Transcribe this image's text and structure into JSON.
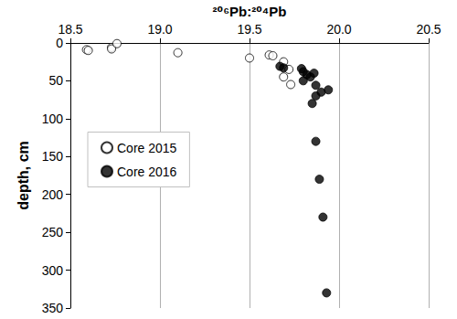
{
  "chart_data": {
    "type": "scatter",
    "x_label": "²⁰⁶Pb:²⁰⁴Pb",
    "y_label": "depth, cm",
    "xlim": [
      18.5,
      20.5
    ],
    "xticks": [
      18.5,
      {
        "value": 19,
        "label": "19.0"
      },
      19.5,
      {
        "value": 20,
        "label": "20.0"
      },
      20.5
    ],
    "ylim": [
      0,
      350
    ],
    "yticks": [
      0,
      50,
      100,
      150,
      200,
      250,
      300,
      350
    ],
    "grid": "x",
    "legend": "left",
    "series": [
      {
        "name": "Core 2015",
        "color": "#000000",
        "marker": "open",
        "x": [
          18.59,
          18.6,
          18.73,
          18.73,
          18.76,
          19.1,
          19.5,
          19.61,
          19.63,
          19.69,
          19.72,
          19.69,
          19.73
        ],
        "values": [
          9,
          10,
          6,
          8,
          1,
          13,
          20,
          16,
          17,
          25,
          35,
          45,
          55
        ]
      },
      {
        "name": "Core 2016",
        "color": "#000000",
        "marker": "filled",
        "x": [
          19.67,
          19.69,
          19.79,
          19.8,
          19.82,
          19.8,
          19.84,
          19.86,
          19.87,
          19.9,
          19.87,
          19.85,
          19.94,
          19.87,
          19.89,
          19.91,
          19.93
        ],
        "values": [
          31,
          33,
          34,
          38,
          42,
          50,
          45,
          40,
          56,
          65,
          70,
          80,
          62,
          130,
          180,
          230,
          330
        ]
      }
    ]
  }
}
